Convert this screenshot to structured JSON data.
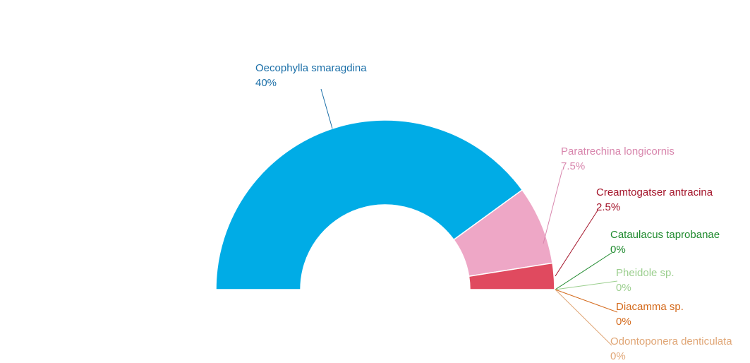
{
  "chart_data": {
    "type": "pie",
    "variant": "semi-donut",
    "title": "",
    "slices": [
      {
        "name": "Oecophylla smaragdina",
        "value_label": "40%",
        "value": 40,
        "color": "#00ace6",
        "label_color": "#1b6fa8"
      },
      {
        "name": "Paratrechina longicornis",
        "value_label": "7.5%",
        "value": 7.5,
        "color": "#eea7c6",
        "label_color": "#d886ad"
      },
      {
        "name": "Creamtogatser antracina",
        "value_label": "2.5%",
        "value": 2.5,
        "color": "#e04a5f",
        "label_color": "#a4142a"
      },
      {
        "name": "Cataulacus taprobanae",
        "value_label": "0%",
        "value": 0,
        "color": "#1f8a2e",
        "label_color": "#1f8a2e"
      },
      {
        "name": "Pheidole sp.",
        "value_label": "0%",
        "value": 0,
        "color": "#9ccf8f",
        "label_color": "#9ccf8f"
      },
      {
        "name": "Diacamma sp.",
        "value_label": "0%",
        "value": 0,
        "color": "#d46a1c",
        "label_color": "#d46a1c"
      },
      {
        "name": "Odontoponera denticulata",
        "value_label": "0%",
        "value": 0,
        "color": "#e9b58a",
        "label_color": "#e0a676"
      }
    ]
  }
}
